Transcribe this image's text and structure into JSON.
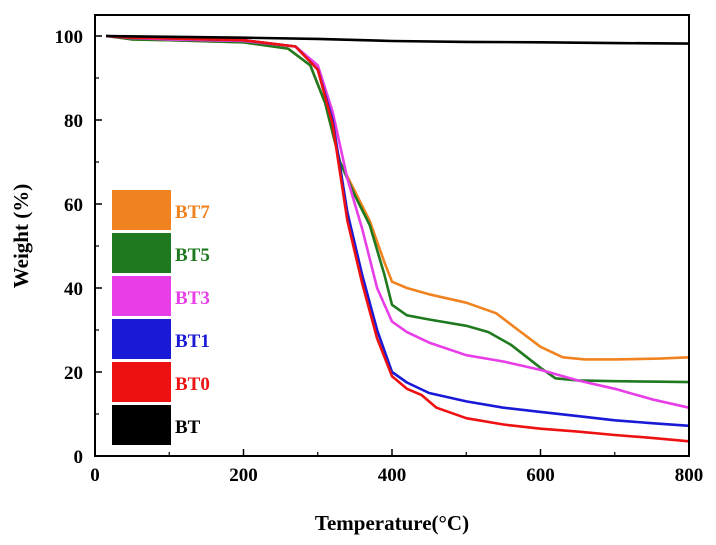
{
  "chart_data": {
    "type": "line",
    "xlabel": "Temperature(°C)",
    "ylabel": "Weight (%)",
    "xlim": [
      0,
      800
    ],
    "ylim": [
      0,
      105
    ],
    "xticks": [
      0,
      200,
      400,
      600,
      800
    ],
    "yticks": [
      0,
      20,
      40,
      60,
      80,
      100
    ],
    "grid": false,
    "legend_position": "left",
    "series": [
      {
        "name": "BT7",
        "color": "#f0831f",
        "x": [
          15,
          50,
          100,
          200,
          260,
          290,
          310,
          330,
          350,
          370,
          390,
          400,
          420,
          450,
          500,
          540,
          570,
          600,
          630,
          660,
          700,
          760,
          800
        ],
        "y": [
          100,
          99.2,
          99,
          98.5,
          97,
          93,
          84,
          70,
          63,
          56,
          46,
          41.5,
          40,
          38.5,
          36.5,
          34,
          30,
          26,
          23.5,
          23,
          23,
          23.2,
          23.5
        ]
      },
      {
        "name": "BT5",
        "color": "#1f7a1f",
        "x": [
          15,
          50,
          100,
          200,
          260,
          290,
          310,
          330,
          350,
          370,
          390,
          400,
          420,
          450,
          500,
          530,
          560,
          600,
          620,
          650,
          700,
          760,
          800
        ],
        "y": [
          100,
          99.2,
          99,
          98.5,
          97,
          93,
          84,
          70,
          62,
          55,
          43,
          36,
          33.5,
          32.5,
          31,
          29.5,
          26.5,
          21,
          18.5,
          18,
          17.8,
          17.7,
          17.6
        ]
      },
      {
        "name": "BT3",
        "color": "#e83ee8",
        "x": [
          15,
          50,
          100,
          200,
          270,
          300,
          320,
          340,
          360,
          380,
          400,
          420,
          450,
          500,
          550,
          600,
          650,
          700,
          750,
          800
        ],
        "y": [
          100,
          99.5,
          99.2,
          98.8,
          97.5,
          93,
          82,
          66,
          54,
          40,
          32,
          29.5,
          27,
          24,
          22.5,
          20.5,
          18,
          16,
          13.5,
          11.5
        ]
      },
      {
        "name": "BT1",
        "color": "#1a1ad6",
        "x": [
          15,
          50,
          100,
          200,
          270,
          300,
          320,
          340,
          360,
          380,
          400,
          420,
          450,
          500,
          550,
          600,
          650,
          700,
          750,
          800
        ],
        "y": [
          100,
          99.6,
          99.4,
          99,
          97.5,
          92,
          80,
          58,
          43,
          30,
          20,
          17.5,
          15,
          13,
          11.5,
          10.5,
          9.5,
          8.5,
          7.8,
          7.2
        ]
      },
      {
        "name": "BT0",
        "color": "#ee1111",
        "x": [
          15,
          50,
          100,
          200,
          270,
          300,
          320,
          340,
          360,
          380,
          400,
          420,
          440,
          460,
          500,
          550,
          600,
          650,
          700,
          750,
          800
        ],
        "y": [
          100,
          99.6,
          99.4,
          99,
          97.5,
          92,
          79,
          56,
          41,
          28,
          19,
          16,
          14.5,
          11.5,
          9,
          7.5,
          6.5,
          5.8,
          5,
          4.3,
          3.5
        ]
      },
      {
        "name": "BT",
        "color": "#000000",
        "x": [
          15,
          100,
          200,
          300,
          400,
          500,
          600,
          700,
          800
        ],
        "y": [
          100,
          99.8,
          99.6,
          99.3,
          98.8,
          98.6,
          98.5,
          98.3,
          98.2
        ]
      }
    ]
  }
}
